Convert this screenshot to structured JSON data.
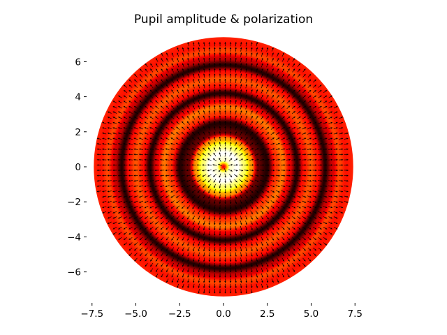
{
  "chart_data": {
    "type": "heatmap",
    "title": "Pupil amplitude & polarization",
    "xlabel": "",
    "ylabel": "",
    "xlim": [
      -7.5,
      7.5
    ],
    "ylim": [
      -7.5,
      7.5
    ],
    "aspect": "equal",
    "grid": false,
    "frame": false,
    "colormap": "hot",
    "pupil_radius": 7.4,
    "x_ticks": [
      -7.5,
      -5.0,
      -2.5,
      0.0,
      2.5,
      5.0,
      7.5
    ],
    "x_tick_labels": [
      "−7.5",
      "−5.0",
      "−2.5",
      "0.0",
      "2.5",
      "5.0",
      "7.5"
    ],
    "y_ticks": [
      6,
      4,
      2,
      0,
      -2,
      -4,
      -6
    ],
    "y_tick_labels": [
      "6",
      "4",
      "2",
      "0",
      "−2",
      "−4",
      "−6"
    ],
    "amplitude_profile": {
      "r": [
        0.0,
        0.4,
        0.8,
        1.2,
        1.6,
        2.0,
        2.5,
        3.0,
        3.4,
        3.8,
        4.2,
        4.6,
        5.0,
        5.4,
        5.8,
        6.2,
        6.6,
        7.0,
        7.4
      ],
      "value": [
        0.35,
        0.95,
        1.0,
        0.85,
        0.6,
        0.15,
        0.05,
        0.45,
        0.55,
        0.35,
        0.05,
        0.4,
        0.5,
        0.4,
        0.05,
        0.3,
        0.48,
        0.4,
        0.42
      ]
    },
    "polarization_vectors": {
      "pattern": "radial",
      "color": "#000000",
      "grid_spacing": 0.3
    }
  }
}
